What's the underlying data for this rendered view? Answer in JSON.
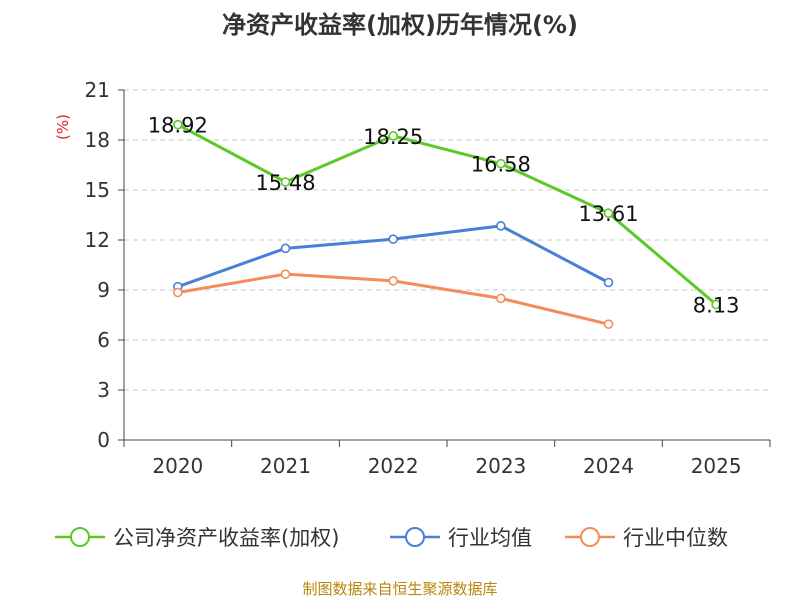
{
  "chart_data": {
    "type": "line",
    "title": "净资产收益率(加权)历年情况(%)",
    "ylabel": "(%)",
    "xlabel": "",
    "categories": [
      "2020",
      "2021",
      "2022",
      "2023",
      "2024",
      "2025"
    ],
    "ylim": [
      0,
      21
    ],
    "yticks": [
      0,
      3,
      6,
      9,
      12,
      15,
      18,
      21
    ],
    "grid": true,
    "legend_position": "bottom",
    "series": [
      {
        "name": "公司净资产收益率(加权)",
        "color": "#5cc927",
        "values": [
          18.92,
          15.48,
          18.25,
          16.58,
          13.61,
          8.13
        ],
        "labels": [
          "18.92",
          "15.48",
          "18.25",
          "16.58",
          "13.61",
          "8.13"
        ],
        "show_labels": true
      },
      {
        "name": "行业均值",
        "color": "#4a7fd8",
        "values": [
          9.2,
          11.5,
          12.05,
          12.85,
          9.45,
          null
        ],
        "show_labels": false
      },
      {
        "name": "行业中位数",
        "color": "#f58b5a",
        "values": [
          8.85,
          9.95,
          9.55,
          8.5,
          6.95,
          null
        ],
        "show_labels": false
      }
    ],
    "source": "制图数据来自恒生聚源数据库"
  }
}
